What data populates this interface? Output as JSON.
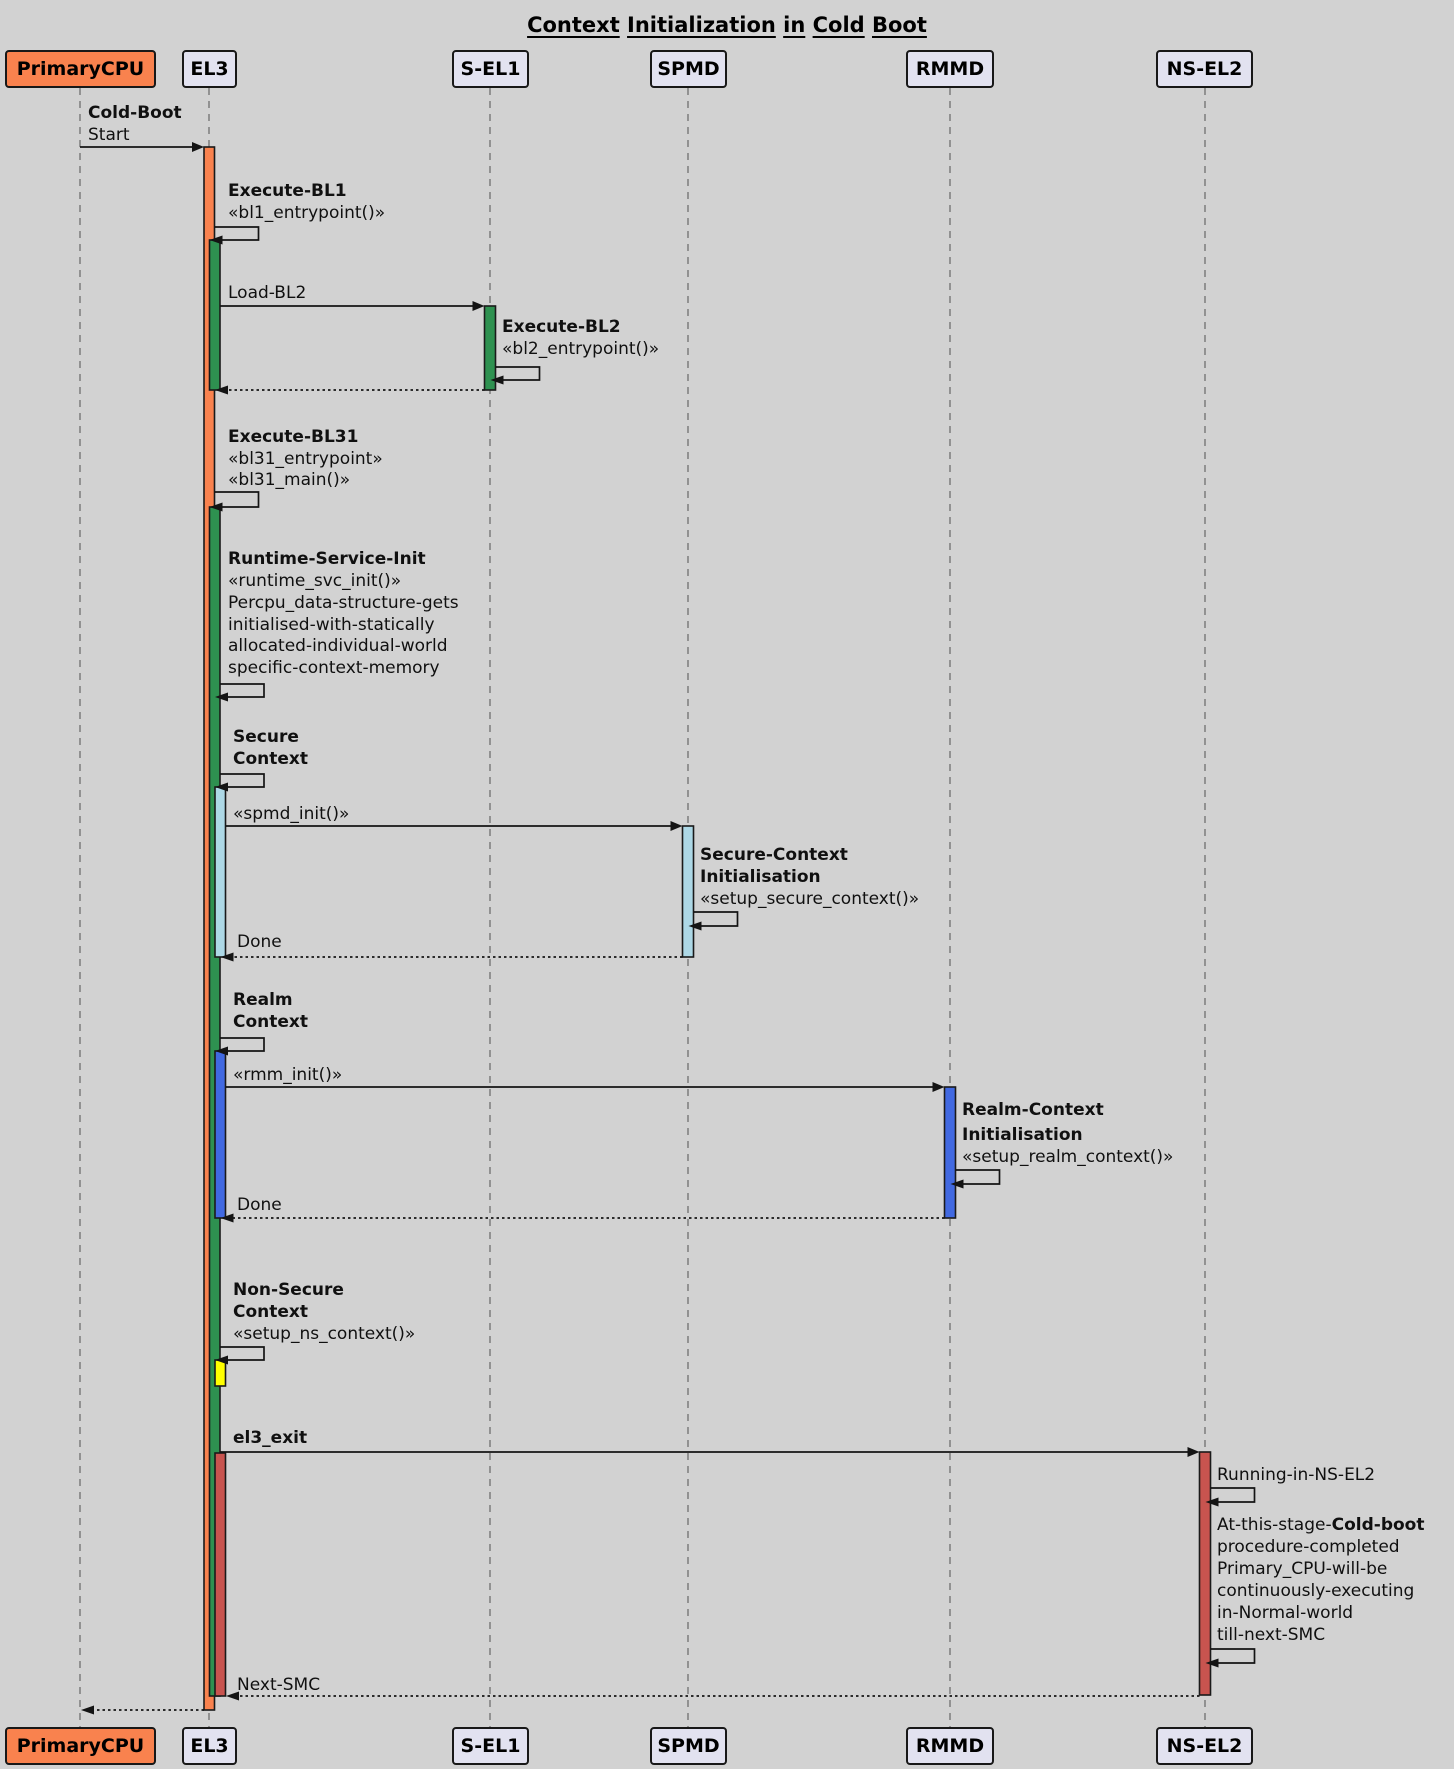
{
  "title": "Context Initialization in Cold Boot",
  "participants": [
    {
      "id": "primary_cpu",
      "label": "PrimaryCPU",
      "highlight": true
    },
    {
      "id": "el3",
      "label": "EL3",
      "highlight": false
    },
    {
      "id": "s_el1",
      "label": "S-EL1",
      "highlight": false
    },
    {
      "id": "spmd",
      "label": "SPMD",
      "highlight": false
    },
    {
      "id": "rmmd",
      "label": "RMMD",
      "highlight": false
    },
    {
      "id": "ns_el2",
      "label": "NS-EL2",
      "highlight": false
    }
  ],
  "messages": {
    "cold_boot": {
      "l1": "Cold-Boot",
      "l2": "Start"
    },
    "execute_bl1": {
      "l1": "Execute-BL1",
      "l2": "«bl1_entrypoint()»"
    },
    "load_bl2": "Load-BL2",
    "execute_bl2": {
      "l1": "Execute-BL2",
      "l2": "«bl2_entrypoint()»"
    },
    "execute_bl31": {
      "l1": "Execute-BL31",
      "l2": "«bl31_entrypoint»",
      "l3": "«bl31_main()»"
    },
    "runtime_service_init": {
      "l1": "Runtime-Service-Init",
      "l2": "«runtime_svc_init()»",
      "l3": "Percpu_data-structure-gets",
      "l4": "initialised-with-statically",
      "l5": "allocated-individual-world",
      "l6": "specific-context-memory"
    },
    "secure_context": {
      "l1": "Secure",
      "l2": "Context"
    },
    "spmd_init": "«spmd_init()»",
    "secure_context_init": {
      "l1": "Secure-Context",
      "l2": "Initialisation",
      "l3": "«setup_secure_context()»"
    },
    "done_secure": "Done",
    "realm_context": {
      "l1": "Realm",
      "l2": "Context"
    },
    "rmm_init": "«rmm_init()»",
    "realm_context_init": {
      "l1": "Realm-Context",
      "l2": "Initialisation",
      "l3": "«setup_realm_context()»"
    },
    "done_realm": "Done",
    "non_secure_context": {
      "l1": "Non-Secure",
      "l2": "Context",
      "l3": "«setup_ns_context()»"
    },
    "el3_exit": "el3_exit",
    "running_in_ns_el2": "Running-in-NS-EL2",
    "cold_boot_complete": {
      "l1_prefix": "At-this-stage-",
      "l1_bold": "Cold-boot",
      "l2": "procedure-completed",
      "l3": "Primary_CPU-will-be",
      "l4": "continuously-executing",
      "l5": "in-Normal-world",
      "l6": "till-next-SMC"
    },
    "next_smc": "Next-SMC"
  },
  "colors": {
    "background": "#D2D2D2",
    "participant_fill": "#E2E2F0",
    "participant_border": "#181818",
    "primary_cpu_fill": "#F9824E",
    "activation_orange": "#F9824E",
    "activation_green": "#2E9150",
    "activation_lightblue": "#ADD8E6",
    "activation_blue": "#4169E1",
    "activation_yellow": "#FFFF00",
    "activation_red": "#C8544F"
  }
}
